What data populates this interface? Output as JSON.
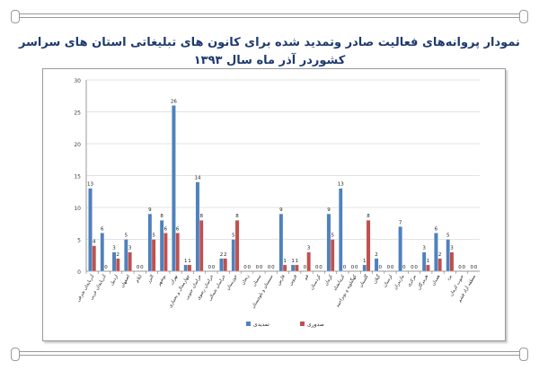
{
  "chart_data": {
    "type": "bar",
    "title": "نمودار پروانه‌های فعالیت صادر وتمدید شده برای کانون های تبلیغاتی استان های سراسر کشوردر آذر ماه سال ۱۳۹۳",
    "xlabel": "",
    "ylabel": "",
    "ylim": [
      0,
      30
    ],
    "yticks": [
      0,
      5,
      10,
      15,
      20,
      25,
      30
    ],
    "grid": true,
    "legend_position": "bottom",
    "categories": [
      "آذربایجان شرقی",
      "آذربایجان غربی",
      "اردبیل",
      "اصفهان",
      "ایلام",
      "البرز",
      "بوشهر",
      "تهران",
      "چهارمحال و بختیاری",
      "خراسان جنوبی",
      "خراسان رضوی",
      "خراسان شمالی",
      "خوزستان",
      "زنجان",
      "سمنان",
      "سیستان و بلوچستان",
      "فارس",
      "قزوین",
      "قم",
      "کردستان",
      "کرمان",
      "کرمانشاه",
      "کهگیلویه و بویراحمد",
      "گلستان",
      "گیلان",
      "لرستان",
      "مازندران",
      "مرکزی",
      "هرمزگان",
      "همدان",
      "یزد",
      "جنوب کرمان",
      "منطقه آزاد قشم"
    ],
    "series": [
      {
        "name": "تمدیدی",
        "color": "#4f81bd",
        "values": [
          13,
          6,
          3,
          5,
          0,
          9,
          8,
          26,
          1,
          14,
          0,
          2,
          5,
          0,
          0,
          0,
          9,
          1,
          0,
          0,
          9,
          13,
          0,
          1,
          2,
          0,
          7,
          0,
          3,
          6,
          5,
          0,
          0
        ]
      },
      {
        "name": "صدوری",
        "color": "#c0504d",
        "values": [
          4,
          0,
          2,
          3,
          0,
          5,
          6,
          6,
          1,
          8,
          0,
          2,
          8,
          0,
          0,
          0,
          1,
          1,
          3,
          0,
          5,
          0,
          0,
          8,
          0,
          0,
          0,
          0,
          1,
          2,
          3,
          0,
          0
        ]
      }
    ]
  }
}
